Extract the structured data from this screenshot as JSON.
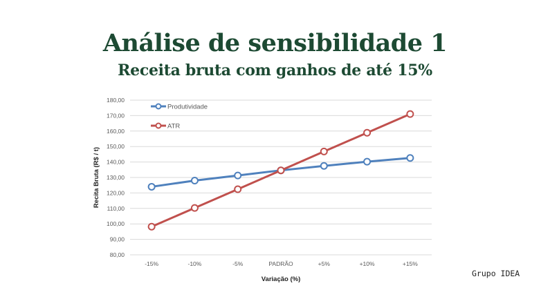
{
  "header": {
    "title": "Análise de sensibilidade 1",
    "subtitle": "Receita bruta com ganhos de até 15%"
  },
  "credit": "Grupo IDEA",
  "chart_data": {
    "type": "line",
    "xlabel": "Variação (%)",
    "ylabel": "Recita Bruta (R$ / t)",
    "categories": [
      "-15%",
      "-10%",
      "-5%",
      "PADRÃO",
      "+5%",
      "+10%",
      "+15%"
    ],
    "ylim": [
      80,
      180
    ],
    "yticks": [
      80,
      90,
      100,
      110,
      120,
      130,
      140,
      150,
      160,
      170,
      180
    ],
    "ytick_labels": [
      "80,00",
      "90,00",
      "100,00",
      "110,00",
      "120,00",
      "130,00",
      "140,00",
      "150,00",
      "160,00",
      "170,00",
      "180,00"
    ],
    "grid": true,
    "legend_position": "top-left",
    "series": [
      {
        "name": "Produtividade",
        "color": "#4f81bd",
        "values": [
          124.0,
          128.0,
          131.3,
          134.6,
          137.5,
          140.2,
          142.6
        ]
      },
      {
        "name": "ATR",
        "color": "#c0504d",
        "values": [
          98.2,
          110.3,
          122.4,
          134.6,
          146.8,
          158.9,
          171.0
        ]
      }
    ]
  }
}
